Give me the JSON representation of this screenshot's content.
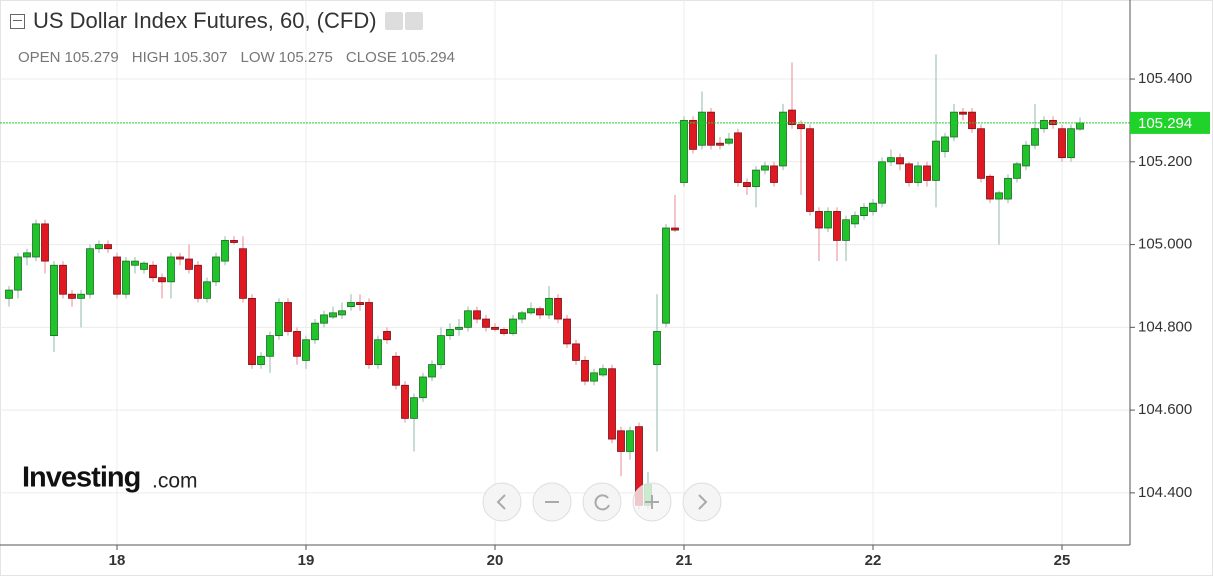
{
  "chart_data": {
    "type": "candlestick",
    "title": "US Dollar Index Futures, 60, (CFD)",
    "fields": [
      {
        "label": "OPEN",
        "value": 105.279
      },
      {
        "label": "HIGH",
        "value": 105.307
      },
      {
        "label": "LOW",
        "value": 105.275
      },
      {
        "label": "CLOSE",
        "value": 105.294
      }
    ],
    "watermark": [
      "Investing",
      ".com"
    ],
    "categories": [
      null,
      null,
      null,
      null,
      null,
      null,
      null,
      null,
      null,
      null,
      null,
      null,
      "18",
      null,
      null,
      null,
      null,
      null,
      null,
      null,
      null,
      null,
      null,
      null,
      null,
      null,
      null,
      null,
      null,
      null,
      null,
      null,
      null,
      "19",
      null,
      null,
      null,
      null,
      null,
      null,
      null,
      null,
      null,
      null,
      null,
      null,
      null,
      null,
      null,
      null,
      null,
      null,
      null,
      null,
      "20",
      null,
      null,
      null,
      null,
      null,
      null,
      null,
      null,
      null,
      null,
      null,
      null,
      null,
      null,
      null,
      null,
      null,
      null,
      null,
      null,
      "21",
      null,
      null,
      null,
      null,
      null,
      null,
      null,
      null,
      null,
      null,
      null,
      null,
      null,
      null,
      null,
      null,
      null,
      null,
      null,
      null,
      "22",
      null,
      null,
      null,
      null,
      null,
      null,
      null,
      null,
      null,
      null,
      null,
      null,
      null,
      null,
      null,
      null,
      null,
      null,
      null,
      null,
      "25",
      null,
      null
    ],
    "open": [
      104.87,
      104.89,
      104.97,
      104.97,
      105.05,
      104.78,
      104.95,
      104.88,
      104.87,
      104.88,
      104.99,
      105.0,
      104.97,
      104.88,
      104.95,
      104.94,
      104.95,
      104.92,
      104.91,
      104.97,
      104.965,
      104.95,
      104.87,
      104.91,
      104.96,
      105.01,
      104.99,
      104.87,
      104.71,
      104.73,
      104.78,
      104.86,
      104.79,
      104.72,
      104.77,
      104.81,
      104.825,
      104.83,
      104.85,
      104.86,
      104.86,
      104.71,
      104.79,
      104.73,
      104.66,
      104.58,
      104.63,
      104.68,
      104.71,
      104.78,
      104.795,
      104.8,
      104.84,
      104.82,
      104.8,
      104.795,
      104.785,
      104.82,
      104.835,
      104.845,
      104.83,
      104.87,
      104.82,
      104.76,
      104.72,
      104.67,
      104.685,
      104.7,
      104.55,
      104.5,
      104.56,
      104.37,
      104.71,
      104.81,
      105.04,
      105.15,
      105.3,
      105.24,
      105.32,
      105.245,
      105.245,
      105.27,
      105.15,
      105.14,
      105.18,
      105.19,
      105.19,
      105.325,
      105.29,
      105.28,
      105.08,
      105.04,
      105.08,
      105.01,
      105.05,
      105.07,
      105.08,
      105.1,
      105.2,
      105.21,
      105.195,
      105.15,
      105.19,
      105.155,
      105.225,
      105.26,
      105.32,
      105.32,
      105.28,
      105.165,
      105.11,
      105.11,
      105.16,
      105.19,
      105.24,
      105.28,
      105.3,
      105.28,
      105.21,
      105.279
    ],
    "high": [
      104.9,
      104.98,
      104.99,
      105.06,
      105.06,
      104.96,
      104.96,
      104.89,
      104.89,
      105.0,
      105.01,
      105.01,
      104.98,
      104.97,
      104.97,
      104.96,
      104.96,
      104.93,
      104.98,
      104.98,
      105.0,
      104.96,
      104.92,
      104.98,
      105.02,
      105.02,
      105.02,
      104.88,
      104.74,
      104.79,
      104.87,
      104.87,
      104.8,
      104.78,
      104.82,
      104.84,
      104.85,
      104.86,
      104.88,
      104.88,
      104.87,
      104.78,
      104.8,
      104.74,
      104.67,
      104.64,
      104.69,
      104.72,
      104.8,
      104.81,
      104.82,
      104.85,
      104.85,
      104.83,
      104.81,
      104.8,
      104.83,
      104.84,
      104.86,
      104.85,
      104.9,
      104.88,
      104.83,
      104.77,
      104.73,
      104.7,
      104.71,
      104.71,
      104.56,
      104.56,
      104.57,
      104.45,
      104.88,
      105.05,
      105.12,
      105.31,
      105.31,
      105.37,
      105.33,
      105.26,
      105.27,
      105.28,
      105.16,
      105.19,
      105.2,
      105.2,
      105.34,
      105.44,
      105.3,
      105.29,
      105.09,
      105.09,
      105.09,
      105.07,
      105.08,
      105.1,
      105.11,
      105.21,
      105.23,
      105.22,
      105.2,
      105.2,
      105.2,
      105.46,
      105.27,
      105.34,
      105.33,
      105.33,
      105.29,
      105.17,
      105.13,
      105.17,
      105.2,
      105.25,
      105.34,
      105.31,
      105.31,
      105.29,
      105.29,
      105.307
    ],
    "low": [
      104.85,
      104.87,
      104.95,
      104.96,
      104.93,
      104.74,
      104.87,
      104.85,
      104.8,
      104.87,
      104.98,
      104.98,
      104.87,
      104.87,
      104.93,
      104.93,
      104.91,
      104.87,
      104.87,
      104.95,
      104.93,
      104.86,
      104.86,
      104.9,
      104.95,
      105.0,
      104.86,
      104.7,
      104.7,
      104.69,
      104.77,
      104.78,
      104.71,
      104.7,
      104.76,
      104.8,
      104.82,
      104.82,
      104.84,
      104.84,
      104.7,
      104.7,
      104.76,
      104.65,
      104.57,
      104.5,
      104.62,
      104.67,
      104.7,
      104.77,
      104.78,
      104.79,
      104.81,
      104.79,
      104.79,
      104.78,
      104.78,
      104.81,
      104.83,
      104.82,
      104.82,
      104.81,
      104.75,
      104.71,
      104.66,
      104.66,
      104.68,
      104.52,
      104.44,
      104.48,
      104.36,
      104.36,
      104.5,
      104.8,
      105.03,
      105.14,
      105.22,
      105.23,
      105.23,
      105.23,
      105.24,
      105.14,
      105.12,
      105.09,
      105.17,
      105.14,
      105.18,
      105.28,
      105.12,
      105.07,
      104.96,
      105.03,
      104.96,
      104.96,
      105.04,
      105.06,
      105.07,
      105.09,
      105.19,
      105.18,
      105.14,
      105.14,
      105.14,
      105.09,
      105.21,
      105.25,
      105.3,
      105.27,
      105.15,
      105.1,
      105.0,
      105.1,
      105.15,
      105.18,
      105.23,
      105.27,
      105.28,
      105.2,
      105.2,
      105.275
    ],
    "close": [
      104.89,
      104.97,
      104.98,
      105.05,
      104.96,
      104.95,
      104.88,
      104.87,
      104.88,
      104.99,
      105.0,
      104.99,
      104.88,
      104.96,
      104.96,
      104.955,
      104.92,
      104.91,
      104.97,
      104.965,
      104.94,
      104.87,
      104.91,
      104.97,
      105.01,
      105.005,
      104.87,
      104.71,
      104.73,
      104.78,
      104.86,
      104.79,
      104.73,
      104.77,
      104.81,
      104.83,
      104.835,
      104.84,
      104.86,
      104.855,
      104.71,
      104.77,
      104.77,
      104.66,
      104.58,
      104.63,
      104.68,
      104.71,
      104.78,
      104.795,
      104.8,
      104.84,
      104.82,
      104.8,
      104.795,
      104.785,
      104.82,
      104.835,
      104.845,
      104.83,
      104.87,
      104.82,
      104.76,
      104.72,
      104.67,
      104.69,
      104.7,
      104.53,
      104.5,
      104.55,
      104.37,
      104.42,
      104.79,
      105.04,
      105.035,
      105.3,
      105.23,
      105.32,
      105.24,
      105.24,
      105.255,
      105.15,
      105.14,
      105.18,
      105.19,
      105.15,
      105.32,
      105.29,
      105.28,
      105.08,
      105.04,
      105.08,
      105.01,
      105.06,
      105.07,
      105.09,
      105.1,
      105.2,
      105.21,
      105.195,
      105.15,
      105.19,
      105.155,
      105.25,
      105.26,
      105.32,
      105.315,
      105.28,
      105.16,
      105.11,
      105.125,
      105.16,
      105.195,
      105.24,
      105.28,
      105.3,
      105.29,
      105.21,
      105.28,
      105.294
    ],
    "up_color": "#1fc42a",
    "down_color": "#e01822",
    "last_price": 105.294,
    "last_price_color": "#1fd32a",
    "ylim": [
      104.274,
      105.591
    ],
    "yticks": [
      {
        "value": 104.4,
        "label": "104.400"
      },
      {
        "value": 104.6,
        "label": "104.600"
      },
      {
        "value": 104.8,
        "label": "104.800"
      },
      {
        "value": 105.0,
        "label": "105.000"
      },
      {
        "value": 105.2,
        "label": "105.200"
      },
      {
        "value": 105.4,
        "label": "105.400"
      }
    ],
    "grid": true
  }
}
